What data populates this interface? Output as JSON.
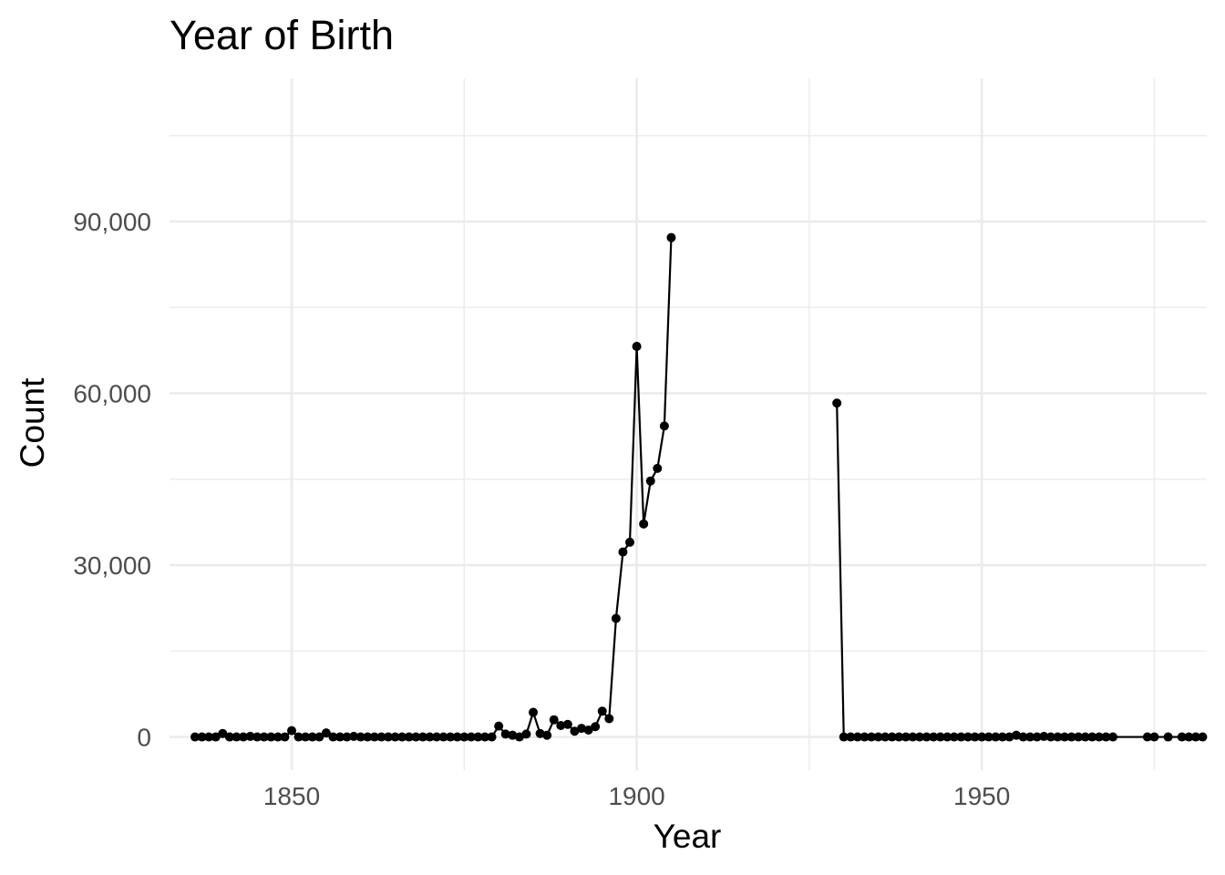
{
  "chart_data": {
    "type": "line",
    "title": "Year of Birth",
    "xlabel": "Year",
    "ylabel": "Count",
    "xlim": [
      1832.3,
      1982.6
    ],
    "ylim": [
      -5800,
      115000
    ],
    "x_ticks": [
      1850,
      1900,
      1950
    ],
    "x_tick_labels": [
      "1850",
      "1900",
      "1950"
    ],
    "x_minor_ticks": [
      1875,
      1925,
      1975
    ],
    "y_ticks": [
      0,
      30000,
      60000,
      90000
    ],
    "y_tick_labels": [
      "0",
      "30,000",
      "60,000",
      "90,000"
    ],
    "y_minor_ticks": [
      15000,
      45000,
      75000,
      105000
    ],
    "grid": true,
    "legend": "none",
    "series": [
      {
        "color": "#000000",
        "points": [
          [
            1836,
            0
          ],
          [
            1837,
            0
          ],
          [
            1838,
            0
          ],
          [
            1839,
            0
          ],
          [
            1840,
            600
          ],
          [
            1841,
            0
          ],
          [
            1842,
            0
          ],
          [
            1843,
            0
          ],
          [
            1844,
            100
          ],
          [
            1845,
            0
          ],
          [
            1846,
            0
          ],
          [
            1847,
            0
          ],
          [
            1848,
            0
          ],
          [
            1849,
            0
          ],
          [
            1850,
            1100
          ],
          [
            1851,
            0
          ],
          [
            1852,
            0
          ],
          [
            1853,
            0
          ],
          [
            1854,
            0
          ],
          [
            1855,
            700
          ],
          [
            1856,
            0
          ],
          [
            1857,
            0
          ],
          [
            1858,
            0
          ],
          [
            1859,
            100
          ],
          [
            1860,
            0
          ],
          [
            1861,
            0
          ],
          [
            1862,
            0
          ],
          [
            1863,
            0
          ],
          [
            1864,
            0
          ],
          [
            1865,
            0
          ],
          [
            1866,
            0
          ],
          [
            1867,
            0
          ],
          [
            1868,
            0
          ],
          [
            1869,
            0
          ],
          [
            1870,
            0
          ],
          [
            1871,
            0
          ],
          [
            1872,
            0
          ],
          [
            1873,
            0
          ],
          [
            1874,
            0
          ],
          [
            1875,
            0
          ],
          [
            1876,
            0
          ],
          [
            1877,
            0
          ],
          [
            1878,
            0
          ],
          [
            1879,
            0
          ],
          [
            1880,
            1900
          ],
          [
            1881,
            500
          ],
          [
            1882,
            300
          ],
          [
            1883,
            0
          ],
          [
            1884,
            500
          ],
          [
            1885,
            4300
          ],
          [
            1886,
            600
          ],
          [
            1887,
            300
          ],
          [
            1888,
            3000
          ],
          [
            1889,
            2000
          ],
          [
            1890,
            2200
          ],
          [
            1891,
            1000
          ],
          [
            1892,
            1500
          ],
          [
            1893,
            1200
          ],
          [
            1894,
            1800
          ],
          [
            1895,
            4500
          ],
          [
            1896,
            3200
          ],
          [
            1897,
            20700
          ],
          [
            1898,
            32300
          ],
          [
            1899,
            34000
          ],
          [
            1900,
            68200
          ],
          [
            1901,
            37200
          ],
          [
            1902,
            44700
          ],
          [
            1903,
            46900
          ],
          [
            1904,
            54300
          ],
          [
            1905,
            87200
          ],
          [
            null,
            null
          ],
          [
            1929,
            58300
          ],
          [
            1930,
            0
          ],
          [
            1931,
            0
          ],
          [
            1932,
            0
          ],
          [
            1933,
            0
          ],
          [
            1934,
            0
          ],
          [
            1935,
            0
          ],
          [
            1936,
            0
          ],
          [
            1937,
            0
          ],
          [
            1938,
            0
          ],
          [
            1939,
            0
          ],
          [
            1940,
            0
          ],
          [
            1941,
            0
          ],
          [
            1942,
            0
          ],
          [
            1943,
            0
          ],
          [
            1944,
            0
          ],
          [
            1945,
            0
          ],
          [
            1946,
            0
          ],
          [
            1947,
            0
          ],
          [
            1948,
            0
          ],
          [
            1949,
            0
          ],
          [
            1950,
            0
          ],
          [
            1951,
            0
          ],
          [
            1952,
            0
          ],
          [
            1953,
            0
          ],
          [
            1954,
            0
          ],
          [
            1955,
            300
          ],
          [
            1956,
            0
          ],
          [
            1957,
            0
          ],
          [
            1958,
            0
          ],
          [
            1959,
            100
          ],
          [
            1960,
            0
          ],
          [
            1961,
            0
          ],
          [
            1962,
            0
          ],
          [
            1963,
            0
          ],
          [
            1964,
            0
          ],
          [
            1965,
            0
          ],
          [
            1966,
            0
          ],
          [
            1967,
            0
          ],
          [
            1968,
            0
          ],
          [
            1969,
            0
          ],
          [
            1974,
            0
          ],
          [
            1975,
            0
          ],
          [
            1977,
            0
          ],
          [
            1979,
            0
          ],
          [
            1980,
            0
          ],
          [
            1981,
            0
          ],
          [
            1982,
            0
          ]
        ]
      }
    ]
  }
}
